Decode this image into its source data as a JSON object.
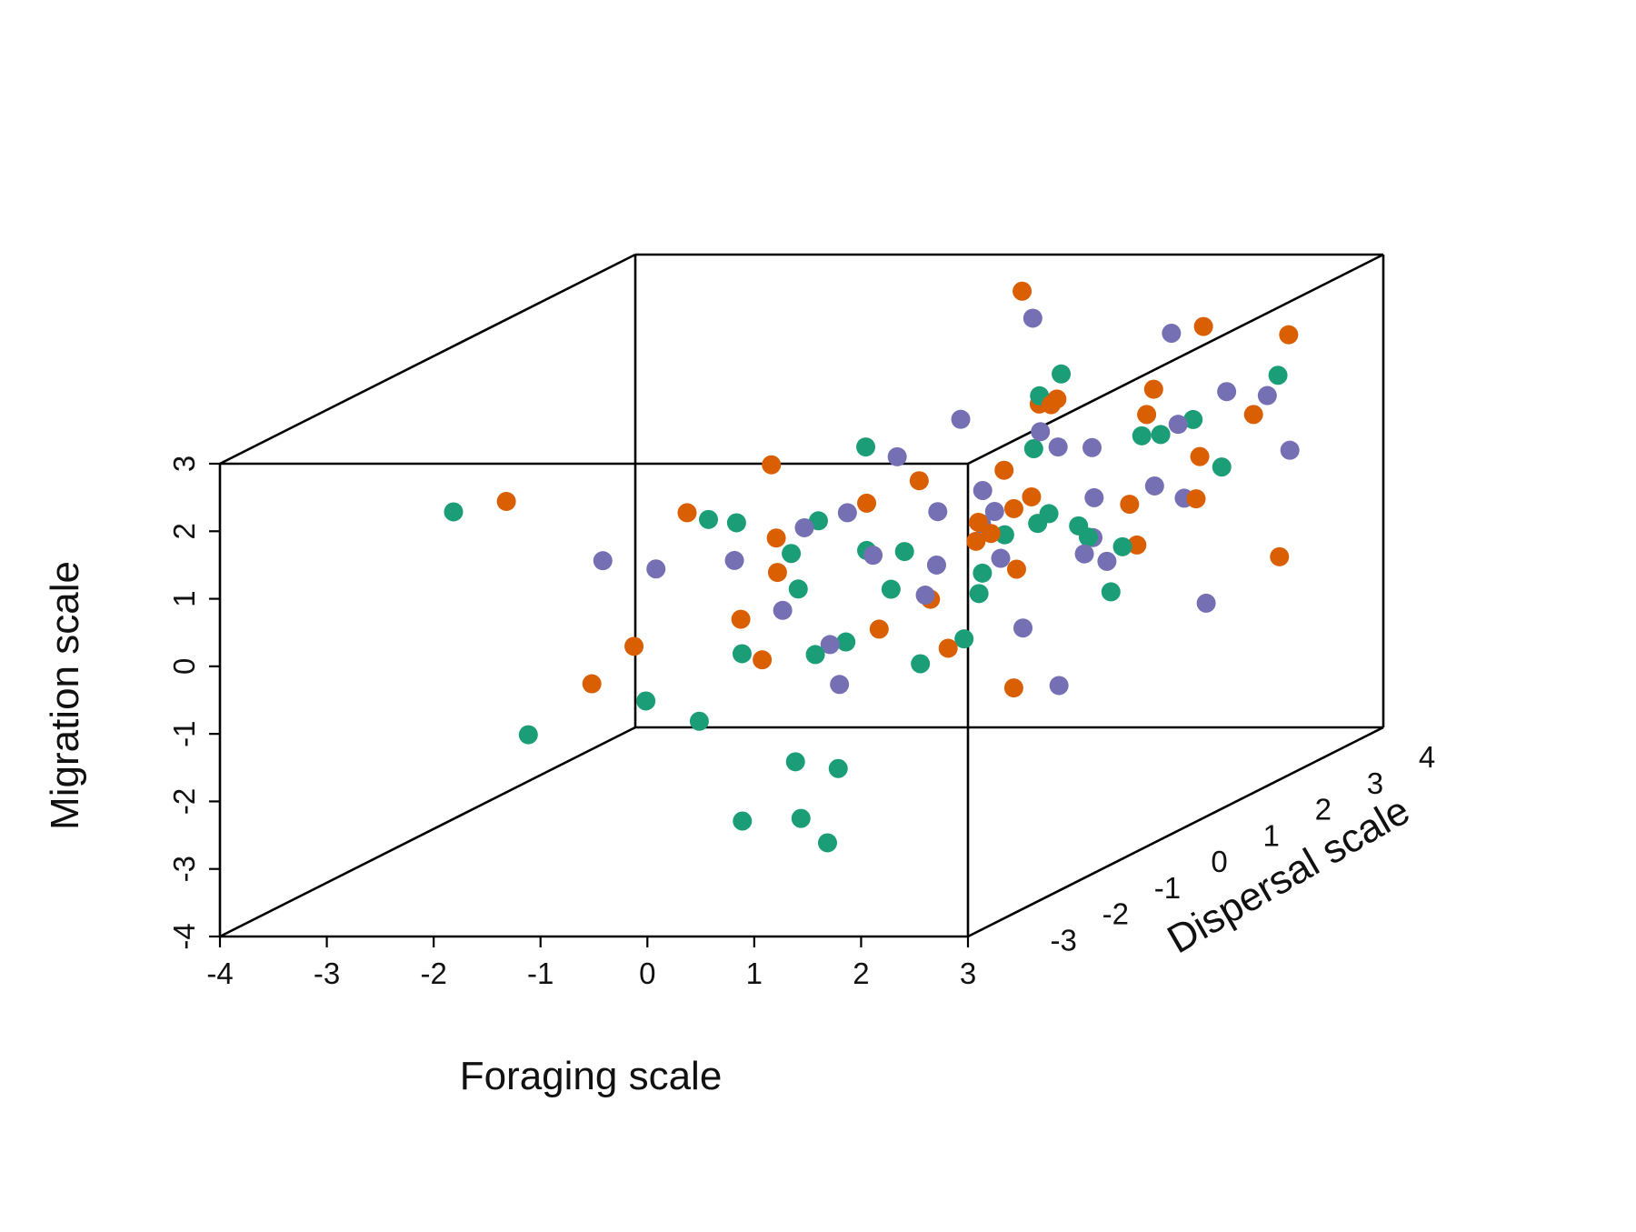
{
  "chart_data": {
    "type": "scatter",
    "projection": "3d-box",
    "xlabel": "Foraging scale",
    "ylabel": "Dispersal scale",
    "zlabel": "Migration scale",
    "xlim": [
      -4,
      3
    ],
    "ylim": [
      -4,
      4
    ],
    "zlim": [
      -4,
      3
    ],
    "x_ticks": [
      "-4",
      "-3",
      "-2",
      "-1",
      "0",
      "1",
      "2",
      "3"
    ],
    "y_ticks": [
      "-3",
      "-2",
      "-1",
      "0",
      "1",
      "2",
      "3",
      "4"
    ],
    "z_ticks": [
      "-4",
      "-3",
      "-2",
      "-1",
      "0",
      "1",
      "2",
      "3"
    ],
    "grid": false,
    "legend": "none",
    "colors": [
      "#1b9e77",
      "#d95f02",
      "#7570b3"
    ],
    "series": [
      {
        "color": "#1b9e77",
        "points": [
          [
            -2.3,
            -3.0,
            1.9
          ],
          [
            -1.6,
            -3.0,
            -1.4
          ],
          [
            -0.5,
            -3.0,
            -0.9
          ],
          [
            0.5,
            -3.2,
            -2.6
          ],
          [
            0.0,
            -3.0,
            -1.2
          ],
          [
            0.9,
            -3.0,
            -1.8
          ],
          [
            1.0,
            -3.1,
            -2.6
          ],
          [
            1.2,
            -3.0,
            -3.0
          ],
          [
            0.4,
            -3.0,
            -0.2
          ],
          [
            0.3,
            -2.9,
            1.7
          ],
          [
            2.5,
            3.0,
            1.6
          ],
          [
            1.9,
            2.6,
            1.1
          ],
          [
            1.5,
            2.8,
            0.8
          ],
          [
            0.6,
            -2.0,
            -0.6
          ],
          [
            0.9,
            1.7,
            1.8
          ],
          [
            1.6,
            -2.6,
            0.6
          ],
          [
            1.3,
            -3.0,
            -1.9
          ],
          [
            0.4,
            -1.0,
            -0.8
          ],
          [
            1.0,
            -0.8,
            -1.2
          ],
          [
            -0.5,
            -0.2,
            0.2
          ],
          [
            0.1,
            0.0,
            1.7
          ],
          [
            1.8,
            0.6,
            0.3
          ],
          [
            0.4,
            -0.6,
            0.4
          ],
          [
            2.2,
            0.4,
            -0.6
          ],
          [
            1.5,
            -0.7,
            -0.2
          ],
          [
            2.1,
            1.2,
            1.4
          ],
          [
            0.1,
            -1.3,
            0.1
          ],
          [
            -0.4,
            -2.0,
            1.4
          ],
          [
            1.6,
            1.2,
            -0.1
          ],
          [
            2.0,
            -0.6,
            0.8
          ],
          [
            0.9,
            0.6,
            -0.4
          ],
          [
            2.6,
            -0.2,
            0.3
          ],
          [
            1.2,
            1.5,
            2.2
          ],
          [
            0.9,
            -0.9,
            0.5
          ],
          [
            2.8,
            1.3,
            0.9
          ],
          [
            1.4,
            0.0,
            0.4
          ],
          [
            -0.1,
            -0.5,
            0.8
          ],
          [
            2.3,
            -1.0,
            1.1
          ],
          [
            1.7,
            -1.4,
            -0.6
          ],
          [
            0.7,
            2.0,
            0.9
          ]
        ]
      },
      {
        "color": "#d95f02",
        "points": [
          [
            -2.0,
            -2.6,
            1.9
          ],
          [
            -1.2,
            -2.6,
            -0.8
          ],
          [
            -1.0,
            -2.2,
            -0.4
          ],
          [
            0.3,
            2.6,
            3.0
          ],
          [
            2.6,
            3.0,
            2.2
          ],
          [
            1.9,
            2.8,
            2.4
          ],
          [
            3.0,
            1.5,
            1.6
          ],
          [
            2.6,
            0.4,
            2.4
          ],
          [
            2.7,
            -2.5,
            -0.9
          ],
          [
            3.0,
            2.0,
            -0.7
          ],
          [
            1.6,
            -1.5,
            -0.7
          ],
          [
            0.2,
            -2.2,
            -0.6
          ],
          [
            0.9,
            -0.4,
            -0.4
          ],
          [
            1.2,
            0.4,
            1.2
          ],
          [
            1.5,
            0.8,
            2.1
          ],
          [
            -0.6,
            -2.0,
            1.5
          ],
          [
            0.1,
            -1.7,
            0.5
          ],
          [
            2.0,
            1.5,
            1.6
          ],
          [
            0.6,
            0.0,
            1.2
          ],
          [
            1.9,
            -0.8,
            0.2
          ],
          [
            1.0,
            1.0,
            0.4
          ],
          [
            -0.2,
            -1.2,
            1.9
          ],
          [
            2.4,
            1.7,
            0.9
          ],
          [
            1.3,
            -0.3,
            0.7
          ],
          [
            0.4,
            -0.6,
            1.1
          ],
          [
            2.2,
            0.9,
            -0.1
          ],
          [
            1.7,
            -0.1,
            1.0
          ],
          [
            0.8,
            1.9,
            1.6
          ],
          [
            1.1,
            -1.8,
            -0.3
          ],
          [
            2.9,
            0.6,
            0.7
          ],
          [
            0.5,
            1.3,
            -0.2
          ],
          [
            1.5,
            2.2,
            0.0
          ],
          [
            -0.3,
            -0.9,
            0.7
          ],
          [
            2.0,
            -1.5,
            1.0
          ],
          [
            1.3,
            1.1,
            1.9
          ],
          [
            0.0,
            -2.2,
            0.0
          ]
        ]
      },
      {
        "color": "#7570b3",
        "points": [
          [
            0.4,
            2.6,
            2.6
          ],
          [
            1.6,
            2.8,
            2.3
          ],
          [
            2.4,
            3.0,
            1.3
          ],
          [
            3.0,
            2.2,
            0.8
          ],
          [
            2.8,
            1.0,
            -1.0
          ],
          [
            2.2,
            -0.6,
            -1.6
          ],
          [
            0.0,
            -0.3,
            -1.7
          ],
          [
            -0.6,
            -2.6,
            0.9
          ],
          [
            -1.0,
            -2.8,
            1.1
          ],
          [
            0.3,
            -1.1,
            -0.8
          ],
          [
            0.9,
            -0.5,
            -0.3
          ],
          [
            1.8,
            0.9,
            0.6
          ],
          [
            2.6,
            -0.5,
            0.2
          ],
          [
            1.2,
            1.1,
            1.5
          ],
          [
            1.5,
            -0.4,
            0.9
          ],
          [
            0.6,
            0.8,
            1.8
          ],
          [
            2.1,
            1.9,
            1.3
          ],
          [
            0.8,
            -1.3,
            0.6
          ],
          [
            1.9,
            0.0,
            1.7
          ],
          [
            0.4,
            -1.8,
            1.2
          ],
          [
            1.2,
            -0.9,
            0.3
          ],
          [
            2.4,
            1.4,
            0.4
          ],
          [
            0.1,
            -1.6,
            -0.1
          ],
          [
            1.6,
            -1.7,
            1.4
          ],
          [
            2.0,
            0.3,
            0.0
          ],
          [
            1.0,
            0.4,
            0.9
          ],
          [
            0.9,
            -2.0,
            1.5
          ],
          [
            1.4,
            1.7,
            -0.3
          ],
          [
            2.7,
            1.6,
            1.9
          ],
          [
            0.6,
            1.2,
            0.1
          ],
          [
            2.3,
            -1.5,
            -0.4
          ],
          [
            1.8,
            -0.9,
            0.4
          ],
          [
            -0.4,
            -1.5,
            0.6
          ],
          [
            1.1,
            2.3,
            0.8
          ],
          [
            2.9,
            -0.2,
            1.2
          ],
          [
            0.2,
            0.4,
            1.4
          ]
        ]
      }
    ]
  }
}
